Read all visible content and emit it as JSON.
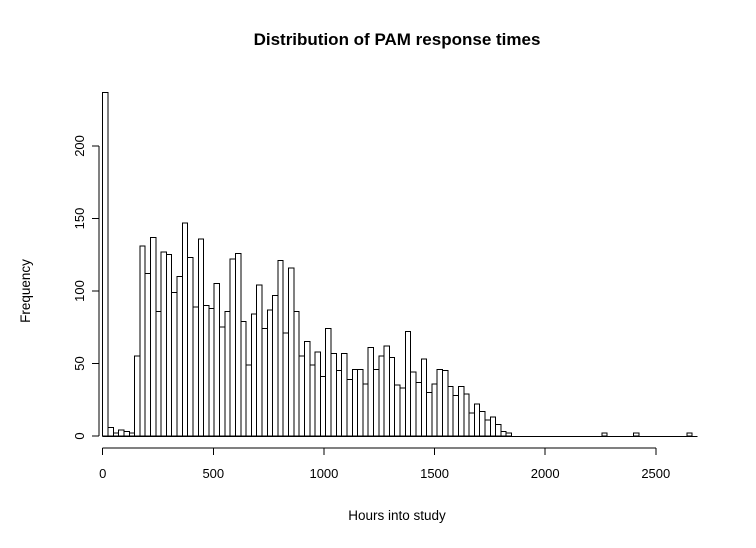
{
  "title": "Distribution of PAM response times",
  "x_axis": {
    "label": "Hours into study",
    "ticks": [
      0,
      500,
      1000,
      1500,
      2000,
      2500
    ]
  },
  "y_axis": {
    "label": "Frequency",
    "ticks": [
      0,
      50,
      100,
      150,
      200
    ]
  },
  "colors": {
    "background": "#ffffff",
    "bar_fill": "#ffffff",
    "bar_stroke": "#000000",
    "axis": "#000000",
    "text": "#000000"
  },
  "chart_data": {
    "type": "bar",
    "subtype": "histogram",
    "title": "Distribution of PAM response times",
    "xlabel": "Hours into study",
    "ylabel": "Frequency",
    "bin_width_hours": 24,
    "bin_start_hours": 0,
    "xlim": [
      0,
      2700
    ],
    "ylim": [
      0,
      240
    ],
    "x_tick_values": [
      0,
      500,
      1000,
      1500,
      2000,
      2500
    ],
    "y_tick_values": [
      0,
      50,
      100,
      150,
      200
    ],
    "grid": false,
    "legend": "none",
    "frequencies": [
      237,
      6,
      2,
      4,
      3,
      2,
      55,
      131,
      112,
      137,
      86,
      127,
      125,
      99,
      110,
      147,
      123,
      89,
      136,
      90,
      88,
      105,
      75,
      86,
      122,
      126,
      79,
      49,
      84,
      104,
      74,
      87,
      97,
      121,
      71,
      116,
      86,
      55,
      65,
      49,
      58,
      41,
      74,
      57,
      45,
      57,
      39,
      46,
      46,
      36,
      61,
      46,
      55,
      62,
      54,
      35,
      33,
      72,
      44,
      37,
      53,
      30,
      36,
      46,
      45,
      34,
      28,
      34,
      29,
      16,
      22,
      17,
      11,
      13,
      8,
      3,
      2,
      0,
      0,
      0,
      0,
      0,
      0,
      0,
      0,
      0,
      0,
      0,
      0,
      0,
      0,
      0,
      0,
      0,
      2,
      0,
      0,
      0,
      0,
      0,
      2,
      0,
      0,
      0,
      0,
      0,
      0,
      0,
      0,
      0,
      2,
      0
    ]
  }
}
